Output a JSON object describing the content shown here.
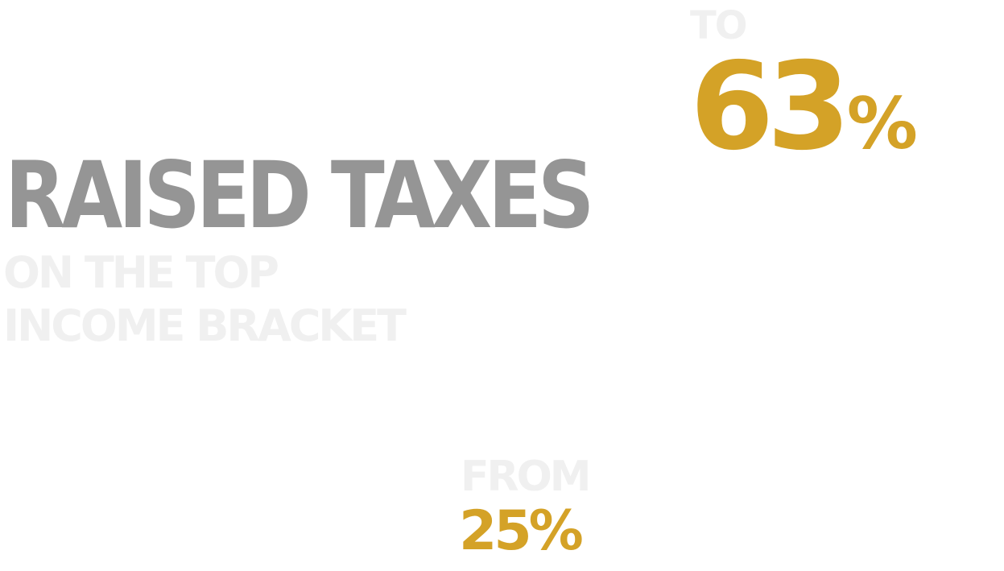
{
  "to": {
    "label": "TO",
    "value": "63",
    "percent_sign": "%"
  },
  "headline": "RAISED TAXES",
  "subheadline": {
    "line1": "ON THE TOP",
    "line2": "INCOME BRACKET"
  },
  "from": {
    "label": "FROM",
    "value": "25%"
  },
  "colors": {
    "gold": "#d4a227",
    "gray": "#959595",
    "light": "#f0f0f0",
    "background": "#ffffff"
  }
}
